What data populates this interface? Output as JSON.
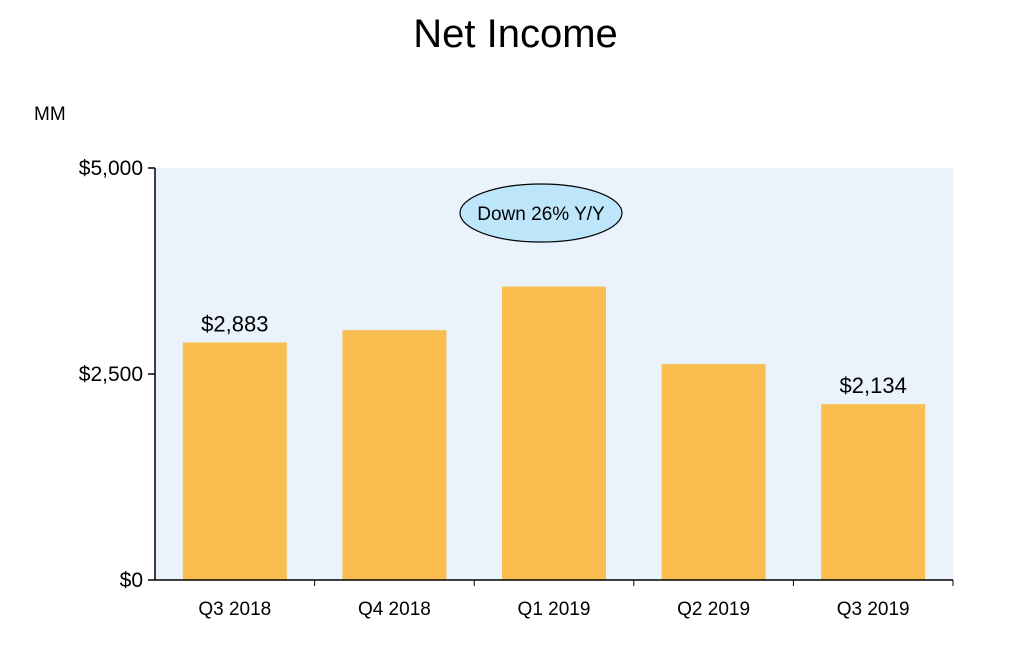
{
  "chart_data": {
    "type": "bar",
    "title": "Net Income",
    "unit_label": "MM",
    "categories": [
      "Q3 2018",
      "Q4 2018",
      "Q1 2019",
      "Q2 2019",
      "Q3 2019"
    ],
    "values": [
      2883,
      3032,
      3561,
      2620,
      2134
    ],
    "data_labels": [
      "$2,883",
      "",
      "",
      "",
      "$2,134"
    ],
    "ylim": [
      0,
      5000
    ],
    "yticks": [
      0,
      2500,
      5000
    ],
    "ytick_labels": [
      "$0",
      "$2,500",
      "$5,000"
    ],
    "annotation": "Down 26% Y/Y",
    "grid": false,
    "legend": "none",
    "colors": {
      "bar": "#F9BE4F",
      "plot_background": "#EAF2FC",
      "annotation_fill": "#BDE6FA",
      "axis": "#000000"
    }
  }
}
